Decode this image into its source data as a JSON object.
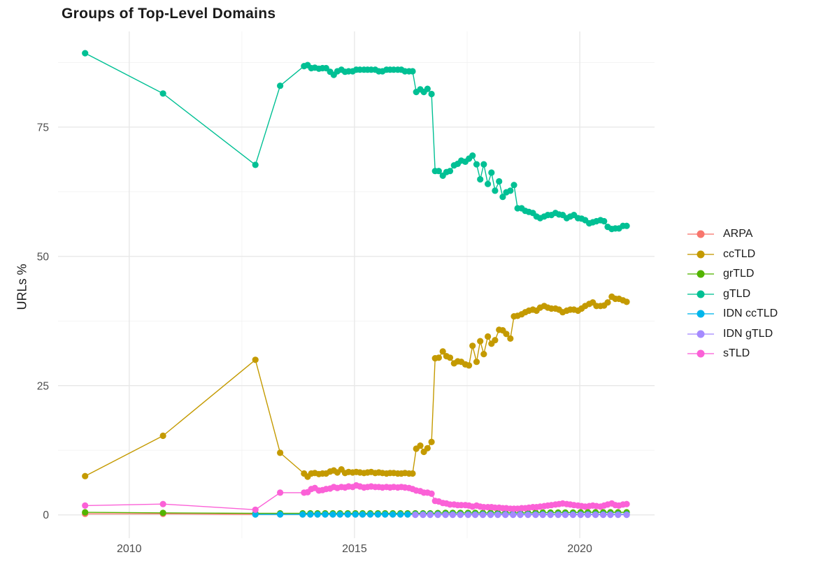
{
  "chart_data": {
    "type": "line",
    "title": "Groups of Top-Level Domains",
    "xlabel": "",
    "ylabel": "URLs %",
    "x_ticks": [
      2010,
      2015,
      2020
    ],
    "x_minor_ticks": [
      2012.5,
      2017.5
    ],
    "y_ticks": [
      0,
      25,
      50,
      75
    ],
    "y_minor_ticks": [
      12.5,
      37.5,
      62.5,
      87.5
    ],
    "xlim": [
      2008.42,
      2021.66
    ],
    "ylim": [
      -4.5,
      93.5
    ],
    "grid": true,
    "legend_position": "right",
    "background_color": "#ffffff",
    "grid_major_color": "#e8e8e8",
    "grid_minor_color": "#f2f2f2",
    "axis_text_color": "#4d4d4d",
    "series": [
      {
        "name": "ARPA",
        "color": "#F8766D",
        "x": [
          2009.02,
          2010.75,
          2012.8,
          2013.35,
          2013.85,
          2014.02,
          2014.18,
          2014.35,
          2014.52,
          2014.68,
          2014.85,
          2015.02,
          2015.18,
          2015.35,
          2015.52,
          2015.68,
          2015.85,
          2016.02,
          2016.18,
          2016.35,
          2016.52,
          2016.68,
          2016.85,
          2017.02,
          2017.18,
          2017.35,
          2017.52,
          2017.68,
          2017.85,
          2018.02,
          2018.18,
          2018.35,
          2018.52,
          2018.68,
          2018.85,
          2019.02,
          2019.18,
          2019.35,
          2019.52,
          2019.68,
          2019.85,
          2020.02,
          2020.18,
          2020.35,
          2020.52,
          2020.68,
          2020.85,
          2021.04
        ],
        "y": [
          0.2,
          0.2,
          0.1,
          0.1,
          0.1,
          0.1,
          0.1,
          0.1,
          0.1,
          0.1,
          0.1,
          0.1,
          0.1,
          0.1,
          0.1,
          0.1,
          0.1,
          0.1,
          0.1,
          0.1,
          0.1,
          0.1,
          0.1,
          0.1,
          0.1,
          0.1,
          0.1,
          0.1,
          0.1,
          0.1,
          0.1,
          0.1,
          0.1,
          0.1,
          0.1,
          0.1,
          0.1,
          0.1,
          0.1,
          0.1,
          0.1,
          0.1,
          0.1,
          0.1,
          0.1,
          0.1,
          0.1,
          0.1
        ]
      },
      {
        "name": "ccTLD",
        "color": "#C49A00",
        "x": [
          2009.02,
          2010.75,
          2012.8,
          2013.35,
          2013.88,
          2013.96,
          2014.04,
          2014.12,
          2014.21,
          2014.29,
          2014.37,
          2014.46,
          2014.54,
          2014.62,
          2014.71,
          2014.79,
          2014.87,
          2014.96,
          2015.04,
          2015.12,
          2015.21,
          2015.29,
          2015.37,
          2015.46,
          2015.54,
          2015.62,
          2015.71,
          2015.79,
          2015.87,
          2015.96,
          2016.04,
          2016.12,
          2016.21,
          2016.29,
          2016.37,
          2016.46,
          2016.54,
          2016.62,
          2016.71,
          2016.79,
          2016.87,
          2016.96,
          2017.04,
          2017.12,
          2017.21,
          2017.29,
          2017.37,
          2017.46,
          2017.54,
          2017.62,
          2017.71,
          2017.79,
          2017.87,
          2017.96,
          2018.04,
          2018.12,
          2018.21,
          2018.29,
          2018.37,
          2018.46,
          2018.54,
          2018.62,
          2018.71,
          2018.79,
          2018.87,
          2018.96,
          2019.04,
          2019.12,
          2019.21,
          2019.29,
          2019.37,
          2019.46,
          2019.54,
          2019.62,
          2019.71,
          2019.79,
          2019.87,
          2019.96,
          2020.04,
          2020.12,
          2020.21,
          2020.29,
          2020.37,
          2020.46,
          2020.54,
          2020.62,
          2020.71,
          2020.79,
          2020.87,
          2020.96,
          2021.04
        ],
        "y": [
          7.5,
          15.3,
          30.0,
          12.0,
          8.0,
          7.4,
          8.0,
          8.1,
          7.9,
          8.0,
          8.0,
          8.4,
          8.6,
          8.2,
          8.8,
          8.1,
          8.3,
          8.2,
          8.3,
          8.2,
          8.1,
          8.2,
          8.3,
          8.1,
          8.2,
          8.1,
          8.0,
          8.1,
          8.1,
          8.0,
          8.0,
          8.1,
          8.0,
          8.0,
          12.8,
          13.4,
          12.2,
          12.9,
          14.1,
          30.3,
          30.4,
          31.6,
          30.7,
          30.4,
          29.3,
          29.7,
          29.6,
          29.1,
          28.9,
          32.7,
          29.6,
          33.6,
          31.1,
          34.5,
          33.1,
          33.8,
          35.8,
          35.7,
          35.0,
          34.1,
          38.4,
          38.5,
          38.8,
          39.2,
          39.5,
          39.7,
          39.5,
          40.1,
          40.4,
          40.1,
          39.9,
          39.9,
          39.7,
          39.2,
          39.5,
          39.7,
          39.7,
          39.5,
          39.9,
          40.4,
          40.8,
          41.1,
          40.4,
          40.4,
          40.5,
          41.1,
          42.2,
          41.8,
          41.8,
          41.5,
          41.2
        ]
      },
      {
        "name": "grTLD",
        "color": "#53B400",
        "x": [
          2009.02,
          2010.75,
          2012.8,
          2013.35,
          2013.85,
          2014.02,
          2014.18,
          2014.35,
          2014.52,
          2014.68,
          2014.85,
          2015.02,
          2015.18,
          2015.35,
          2015.52,
          2015.68,
          2015.85,
          2016.02,
          2016.18,
          2016.35,
          2016.52,
          2016.68,
          2016.85,
          2017.02,
          2017.18,
          2017.35,
          2017.52,
          2017.68,
          2017.85,
          2018.02,
          2018.18,
          2018.35,
          2018.52,
          2018.68,
          2018.85,
          2019.02,
          2019.18,
          2019.35,
          2019.52,
          2019.68,
          2019.85,
          2020.02,
          2020.18,
          2020.35,
          2020.52,
          2020.68,
          2020.85,
          2021.04
        ],
        "y": [
          0.5,
          0.4,
          0.3,
          0.3,
          0.3,
          0.3,
          0.3,
          0.3,
          0.3,
          0.3,
          0.3,
          0.3,
          0.3,
          0.3,
          0.3,
          0.3,
          0.3,
          0.3,
          0.3,
          0.3,
          0.3,
          0.3,
          0.35,
          0.4,
          0.4,
          0.4,
          0.4,
          0.4,
          0.4,
          0.4,
          0.4,
          0.4,
          0.4,
          0.4,
          0.4,
          0.45,
          0.45,
          0.45,
          0.45,
          0.45,
          0.45,
          0.5,
          0.5,
          0.5,
          0.5,
          0.5,
          0.5,
          0.5
        ]
      },
      {
        "name": "gTLD",
        "color": "#00C094",
        "x": [
          2009.02,
          2010.75,
          2012.8,
          2013.35,
          2013.88,
          2013.96,
          2014.04,
          2014.12,
          2014.21,
          2014.29,
          2014.37,
          2014.46,
          2014.54,
          2014.62,
          2014.71,
          2014.79,
          2014.87,
          2014.96,
          2015.04,
          2015.12,
          2015.21,
          2015.29,
          2015.37,
          2015.46,
          2015.54,
          2015.62,
          2015.71,
          2015.79,
          2015.87,
          2015.96,
          2016.04,
          2016.12,
          2016.21,
          2016.29,
          2016.37,
          2016.46,
          2016.54,
          2016.62,
          2016.71,
          2016.79,
          2016.87,
          2016.96,
          2017.04,
          2017.12,
          2017.21,
          2017.29,
          2017.37,
          2017.46,
          2017.54,
          2017.62,
          2017.71,
          2017.79,
          2017.87,
          2017.96,
          2018.04,
          2018.12,
          2018.21,
          2018.29,
          2018.37,
          2018.46,
          2018.54,
          2018.62,
          2018.71,
          2018.79,
          2018.87,
          2018.96,
          2019.04,
          2019.12,
          2019.21,
          2019.29,
          2019.37,
          2019.46,
          2019.54,
          2019.62,
          2019.71,
          2019.79,
          2019.87,
          2019.96,
          2020.04,
          2020.12,
          2020.21,
          2020.29,
          2020.37,
          2020.46,
          2020.54,
          2020.62,
          2020.71,
          2020.79,
          2020.87,
          2020.96,
          2021.04
        ],
        "y": [
          89.3,
          81.5,
          67.7,
          83.0,
          86.8,
          87.0,
          86.4,
          86.5,
          86.3,
          86.4,
          86.4,
          85.7,
          85.1,
          85.8,
          86.1,
          85.7,
          85.8,
          85.8,
          86.1,
          86.1,
          86.1,
          86.1,
          86.1,
          86.1,
          85.8,
          85.8,
          86.1,
          86.1,
          86.1,
          86.1,
          86.1,
          85.8,
          85.8,
          85.8,
          81.8,
          82.3,
          81.8,
          82.4,
          81.4,
          66.5,
          66.5,
          65.6,
          66.3,
          66.5,
          67.6,
          67.9,
          68.5,
          68.3,
          68.9,
          69.5,
          67.8,
          64.9,
          67.8,
          64.0,
          66.2,
          62.7,
          64.5,
          61.5,
          62.4,
          62.7,
          63.8,
          59.3,
          59.3,
          58.8,
          58.6,
          58.4,
          57.7,
          57.4,
          57.7,
          58.0,
          58.0,
          58.4,
          58.1,
          58.0,
          57.4,
          57.7,
          58.0,
          57.4,
          57.3,
          57.0,
          56.4,
          56.6,
          56.8,
          57.0,
          56.8,
          55.7,
          55.3,
          55.4,
          55.4,
          55.9,
          55.9
        ]
      },
      {
        "name": "IDN ccTLD",
        "color": "#00B6EB",
        "x": [
          2012.8,
          2013.35,
          2013.85,
          2014.02,
          2014.18,
          2014.35,
          2014.52,
          2014.68,
          2014.85,
          2015.02,
          2015.18,
          2015.35,
          2015.52,
          2015.68,
          2015.85,
          2016.02,
          2016.18,
          2016.35,
          2016.52,
          2016.68,
          2016.85,
          2017.02,
          2017.18,
          2017.35,
          2017.52,
          2017.68,
          2017.85,
          2018.02,
          2018.18,
          2018.35,
          2018.52,
          2018.68,
          2018.85,
          2019.02,
          2019.18,
          2019.35,
          2019.52,
          2019.68,
          2019.85,
          2020.02,
          2020.18,
          2020.35,
          2020.52,
          2020.68,
          2020.85,
          2021.04
        ],
        "y": [
          0.1,
          0.1,
          0.1,
          0.1,
          0.1,
          0.1,
          0.1,
          0.1,
          0.1,
          0.1,
          0.1,
          0.1,
          0.1,
          0.1,
          0.1,
          0.1,
          0.1,
          0.1,
          0.1,
          0.1,
          0.1,
          0.1,
          0.1,
          0.1,
          0.1,
          0.1,
          0.1,
          0.1,
          0.1,
          0.1,
          0.1,
          0.1,
          0.1,
          0.1,
          0.1,
          0.1,
          0.1,
          0.1,
          0.1,
          0.1,
          0.1,
          0.1,
          0.1,
          0.1,
          0.1,
          0.1
        ]
      },
      {
        "name": "IDN gTLD",
        "color": "#A58AFF",
        "x": [
          2016.35,
          2016.52,
          2016.68,
          2016.85,
          2017.02,
          2017.18,
          2017.35,
          2017.52,
          2017.68,
          2017.85,
          2018.02,
          2018.18,
          2018.35,
          2018.52,
          2018.68,
          2018.85,
          2019.02,
          2019.18,
          2019.35,
          2019.52,
          2019.68,
          2019.85,
          2020.02,
          2020.18,
          2020.35,
          2020.52,
          2020.68,
          2020.85,
          2021.04
        ],
        "y": [
          0.02,
          0.02,
          0.02,
          0.02,
          0.02,
          0.02,
          0.02,
          0.02,
          0.02,
          0.02,
          0.02,
          0.02,
          0.02,
          0.02,
          0.02,
          0.02,
          0.02,
          0.02,
          0.02,
          0.02,
          0.02,
          0.02,
          0.02,
          0.02,
          0.02,
          0.02,
          0.02,
          0.02,
          0.02
        ]
      },
      {
        "name": "sTLD",
        "color": "#FB61D7",
        "x": [
          2009.02,
          2010.75,
          2012.8,
          2013.35,
          2013.88,
          2013.96,
          2014.04,
          2014.12,
          2014.21,
          2014.29,
          2014.37,
          2014.46,
          2014.54,
          2014.62,
          2014.71,
          2014.79,
          2014.87,
          2014.96,
          2015.04,
          2015.12,
          2015.21,
          2015.29,
          2015.37,
          2015.46,
          2015.54,
          2015.62,
          2015.71,
          2015.79,
          2015.87,
          2015.96,
          2016.04,
          2016.12,
          2016.21,
          2016.29,
          2016.37,
          2016.46,
          2016.54,
          2016.62,
          2016.71,
          2016.79,
          2016.87,
          2016.96,
          2017.04,
          2017.12,
          2017.21,
          2017.29,
          2017.37,
          2017.46,
          2017.54,
          2017.62,
          2017.71,
          2017.79,
          2017.87,
          2017.96,
          2018.04,
          2018.12,
          2018.21,
          2018.29,
          2018.37,
          2018.46,
          2018.54,
          2018.62,
          2018.71,
          2018.79,
          2018.87,
          2018.96,
          2019.04,
          2019.12,
          2019.21,
          2019.29,
          2019.37,
          2019.46,
          2019.54,
          2019.62,
          2019.71,
          2019.79,
          2019.87,
          2019.96,
          2020.04,
          2020.12,
          2020.21,
          2020.29,
          2020.37,
          2020.46,
          2020.54,
          2020.62,
          2020.71,
          2020.79,
          2020.87,
          2020.96,
          2021.04
        ],
        "y": [
          1.8,
          2.1,
          1.0,
          4.3,
          4.3,
          4.4,
          5.0,
          5.2,
          4.7,
          4.8,
          5.0,
          5.1,
          5.4,
          5.2,
          5.4,
          5.3,
          5.5,
          5.4,
          5.7,
          5.5,
          5.3,
          5.4,
          5.5,
          5.4,
          5.4,
          5.3,
          5.4,
          5.3,
          5.4,
          5.3,
          5.4,
          5.3,
          5.2,
          5.0,
          4.7,
          4.6,
          4.3,
          4.3,
          4.1,
          2.7,
          2.6,
          2.3,
          2.2,
          2.0,
          2.0,
          1.9,
          1.9,
          1.9,
          1.8,
          1.6,
          1.8,
          1.6,
          1.5,
          1.5,
          1.5,
          1.4,
          1.4,
          1.3,
          1.3,
          1.2,
          1.2,
          1.2,
          1.3,
          1.3,
          1.4,
          1.5,
          1.5,
          1.6,
          1.7,
          1.8,
          1.9,
          2.0,
          2.1,
          2.2,
          2.1,
          2.0,
          1.9,
          1.8,
          1.7,
          1.6,
          1.7,
          1.8,
          1.7,
          1.6,
          1.8,
          2.0,
          2.2,
          1.9,
          1.8,
          2.0,
          2.1
        ]
      }
    ]
  }
}
